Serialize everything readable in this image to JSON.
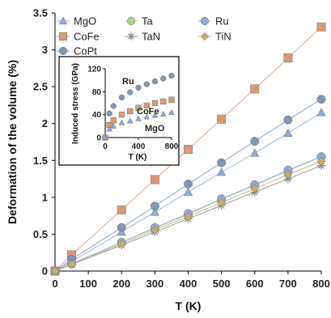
{
  "chart_data": [
    {
      "type": "line",
      "xlabel": "T (K)",
      "ylabel": "Deformation of the volume (%)",
      "xlim": [
        0,
        800
      ],
      "ylim": [
        0,
        3.5
      ],
      "xticks": [
        0,
        100,
        200,
        300,
        400,
        500,
        600,
        700,
        800
      ],
      "yticks": [
        0,
        0.5,
        1,
        1.5,
        2,
        2.5,
        3,
        3.5
      ],
      "grid": false,
      "legend_position": "top-left",
      "x": [
        0,
        50,
        200,
        300,
        400,
        500,
        600,
        700,
        800
      ],
      "series": [
        {
          "name": "MgO",
          "marker": "triangle",
          "color": "#8ea9db",
          "values": [
            0,
            0.13,
            0.53,
            0.8,
            1.07,
            1.34,
            1.6,
            1.87,
            2.15
          ]
        },
        {
          "name": "CoFe",
          "marker": "square",
          "color": "#d99979",
          "values": [
            0,
            0.22,
            0.83,
            1.24,
            1.65,
            2.06,
            2.47,
            2.89,
            3.31
          ]
        },
        {
          "name": "CoPt",
          "marker": "circle",
          "color": "#8497b0",
          "values": [
            0,
            0.16,
            0.59,
            0.88,
            1.18,
            1.47,
            1.76,
            2.05,
            2.33
          ]
        },
        {
          "name": "Ta",
          "marker": "circle",
          "color": "#a9d18e",
          "values": [
            0,
            0.1,
            0.39,
            0.58,
            0.77,
            0.97,
            1.16,
            1.36,
            1.55
          ]
        },
        {
          "name": "TaN",
          "marker": "asterisk",
          "color": "#8c8c8c",
          "values": [
            0,
            0.09,
            0.35,
            0.53,
            0.71,
            0.89,
            1.07,
            1.25,
            1.43
          ]
        },
        {
          "name": "Ru",
          "marker": "circle",
          "color": "#8ea9db",
          "values": [
            0,
            0.1,
            0.39,
            0.59,
            0.78,
            0.98,
            1.17,
            1.37,
            1.55
          ]
        },
        {
          "name": "TiN",
          "marker": "diamond",
          "color": "#c9a96e",
          "values": [
            0,
            0.09,
            0.37,
            0.56,
            0.74,
            0.93,
            1.12,
            1.31,
            1.49
          ]
        }
      ]
    },
    {
      "type": "scatter",
      "xlabel": "T (K)",
      "ylabel": "Induced stress (GPa)",
      "xlim": [
        0,
        800
      ],
      "ylim": [
        0,
        120
      ],
      "xticks": [
        0,
        400,
        800
      ],
      "yticks": [
        0,
        40,
        80,
        120
      ],
      "position": "inset",
      "series": [
        {
          "name": "Ru",
          "marker": "circle",
          "color": "#8497b0",
          "x": [
            0,
            50,
            100,
            200,
            300,
            400,
            500,
            600,
            700,
            800
          ],
          "values": [
            0,
            42,
            55,
            70,
            79,
            87,
            93,
            98,
            103,
            108
          ]
        },
        {
          "name": "CoFe",
          "marker": "square",
          "color": "#d99979",
          "x": [
            0,
            50,
            100,
            200,
            300,
            400,
            500,
            600,
            700,
            800
          ],
          "values": [
            0,
            22,
            30,
            40,
            46,
            52,
            56,
            60,
            63,
            66
          ]
        },
        {
          "name": "MgO",
          "marker": "triangle",
          "color": "#8ea9db",
          "x": [
            0,
            50,
            100,
            200,
            300,
            400,
            500,
            600,
            700,
            800
          ],
          "values": [
            0,
            15,
            20,
            26,
            29,
            33,
            36,
            39,
            41,
            44
          ]
        }
      ]
    }
  ]
}
